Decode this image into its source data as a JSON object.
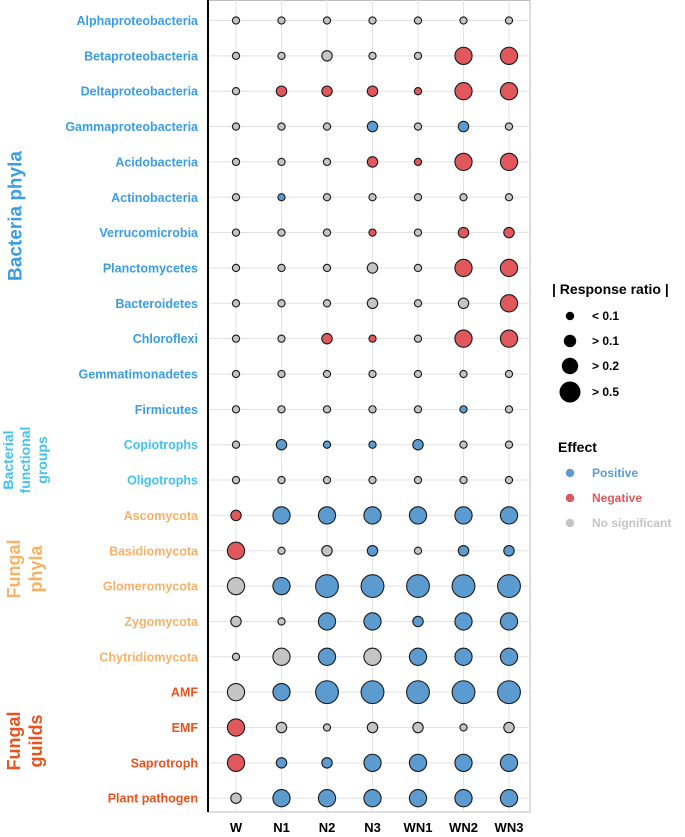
{
  "chart_data": {
    "type": "scatter",
    "title": "",
    "xlabel": "",
    "ylabel": "",
    "grid": true,
    "columns": [
      "W",
      "N1",
      "N2",
      "N3",
      "WN1",
      "WN2",
      "WN3"
    ],
    "rows": [
      {
        "label": "Alphaproteobacteria",
        "group": "bacteria"
      },
      {
        "label": "Betaproteobacteria",
        "group": "bacteria"
      },
      {
        "label": "Deltaproteobacteria",
        "group": "bacteria"
      },
      {
        "label": "Gammaproteobacteria",
        "group": "bacteria"
      },
      {
        "label": "Acidobacteria",
        "group": "bacteria"
      },
      {
        "label": "Actinobacteria",
        "group": "bacteria"
      },
      {
        "label": "Verrucomicrobia",
        "group": "bacteria"
      },
      {
        "label": "Planctomycetes",
        "group": "bacteria"
      },
      {
        "label": "Bacteroidetes",
        "group": "bacteria"
      },
      {
        "label": "Chloroflexi",
        "group": "bacteria"
      },
      {
        "label": "Gemmatimonadetes",
        "group": "bacteria"
      },
      {
        "label": "Firmicutes",
        "group": "bacteria"
      },
      {
        "label": "Copiotrophs",
        "group": "functional"
      },
      {
        "label": "Oligotrophs",
        "group": "functional"
      },
      {
        "label": "Ascomycota",
        "group": "fungal_phyla"
      },
      {
        "label": "Basidiomycota",
        "group": "fungal_phyla"
      },
      {
        "label": "Glomeromycota",
        "group": "fungal_phyla"
      },
      {
        "label": "Zygomycota",
        "group": "fungal_phyla"
      },
      {
        "label": "Chytridiomycota",
        "group": "fungal_phyla"
      },
      {
        "label": "AMF",
        "group": "fungal_guilds"
      },
      {
        "label": "EMF",
        "group": "fungal_guilds"
      },
      {
        "label": "Saprotroph",
        "group": "fungal_guilds"
      },
      {
        "label": "Plant pathogen",
        "group": "fungal_guilds"
      }
    ],
    "size_levels": [
      0.05,
      0.15,
      0.35,
      0.6
    ],
    "size_legend_labels": [
      "< 0.1",
      "> 0.1",
      "> 0.2",
      "> 0.5"
    ],
    "effect_codes": {
      "p": "Positive",
      "n": "Negative",
      "s": "No significant"
    },
    "sizes": [
      [
        0,
        0,
        0,
        0,
        0,
        0,
        0
      ],
      [
        0,
        0,
        1,
        0,
        0,
        2,
        2
      ],
      [
        0,
        1,
        1,
        1,
        0,
        2,
        2
      ],
      [
        0,
        0,
        0,
        1,
        0,
        1,
        0
      ],
      [
        0,
        0,
        0,
        1,
        0,
        2,
        2
      ],
      [
        0,
        0,
        0,
        0,
        0,
        0,
        0
      ],
      [
        0,
        0,
        0,
        0,
        0,
        1,
        1
      ],
      [
        0,
        0,
        0,
        1,
        0,
        2,
        2
      ],
      [
        0,
        0,
        0,
        1,
        0,
        1,
        2
      ],
      [
        0,
        0,
        1,
        0,
        0,
        2,
        2
      ],
      [
        0,
        0,
        0,
        0,
        0,
        0,
        0
      ],
      [
        0,
        0,
        0,
        0,
        0,
        0,
        0
      ],
      [
        0,
        1,
        0,
        0,
        1,
        0,
        0
      ],
      [
        0,
        0,
        0,
        0,
        0,
        0,
        0
      ],
      [
        1,
        2,
        2,
        2,
        2,
        2,
        2
      ],
      [
        2,
        0,
        1,
        1,
        0,
        1,
        1
      ],
      [
        2,
        2,
        3,
        3,
        3,
        3,
        3
      ],
      [
        1,
        0,
        2,
        2,
        1,
        2,
        2
      ],
      [
        0,
        2,
        2,
        2,
        2,
        2,
        2
      ],
      [
        2,
        2,
        3,
        3,
        3,
        3,
        3
      ],
      [
        2,
        1,
        0,
        1,
        1,
        0,
        1
      ],
      [
        2,
        1,
        1,
        2,
        2,
        2,
        2
      ],
      [
        1,
        2,
        2,
        2,
        2,
        2,
        2
      ]
    ],
    "effects": [
      [
        "s",
        "s",
        "s",
        "s",
        "s",
        "s",
        "s"
      ],
      [
        "s",
        "s",
        "s",
        "s",
        "s",
        "n",
        "n"
      ],
      [
        "s",
        "n",
        "n",
        "n",
        "n",
        "n",
        "n"
      ],
      [
        "s",
        "s",
        "s",
        "p",
        "s",
        "p",
        "s"
      ],
      [
        "s",
        "s",
        "s",
        "n",
        "n",
        "n",
        "n"
      ],
      [
        "s",
        "p",
        "s",
        "s",
        "s",
        "s",
        "s"
      ],
      [
        "s",
        "s",
        "s",
        "n",
        "s",
        "n",
        "n"
      ],
      [
        "s",
        "s",
        "s",
        "s",
        "s",
        "n",
        "n"
      ],
      [
        "s",
        "s",
        "s",
        "s",
        "s",
        "s",
        "n"
      ],
      [
        "s",
        "s",
        "n",
        "n",
        "s",
        "n",
        "n"
      ],
      [
        "s",
        "s",
        "s",
        "s",
        "s",
        "s",
        "s"
      ],
      [
        "s",
        "s",
        "s",
        "s",
        "s",
        "p",
        "s"
      ],
      [
        "s",
        "p",
        "p",
        "p",
        "p",
        "s",
        "s"
      ],
      [
        "s",
        "s",
        "s",
        "s",
        "s",
        "s",
        "s"
      ],
      [
        "n",
        "p",
        "p",
        "p",
        "p",
        "p",
        "p"
      ],
      [
        "n",
        "s",
        "s",
        "p",
        "s",
        "p",
        "p"
      ],
      [
        "s",
        "p",
        "p",
        "p",
        "p",
        "p",
        "p"
      ],
      [
        "s",
        "s",
        "p",
        "p",
        "p",
        "p",
        "p"
      ],
      [
        "s",
        "s",
        "p",
        "s",
        "p",
        "p",
        "p"
      ],
      [
        "s",
        "p",
        "p",
        "p",
        "p",
        "p",
        "p"
      ],
      [
        "n",
        "s",
        "s",
        "s",
        "s",
        "s",
        "s"
      ],
      [
        "n",
        "p",
        "p",
        "p",
        "p",
        "p",
        "p"
      ],
      [
        "s",
        "p",
        "p",
        "p",
        "p",
        "p",
        "p"
      ]
    ],
    "groups": [
      {
        "id": "bacteria",
        "lines": [
          "Bacteria phyla"
        ]
      },
      {
        "id": "functional",
        "lines": [
          "Bacterial",
          "functional",
          "groups"
        ]
      },
      {
        "id": "fungal_phyla",
        "lines": [
          "Fungal",
          "phyla"
        ]
      },
      {
        "id": "fungal_guilds",
        "lines": [
          "Fungal",
          "guilds"
        ]
      }
    ],
    "legend": {
      "size_title": "| Response ratio |",
      "effect_title": "Effect",
      "effect_items": [
        {
          "code": "p",
          "label": "Positive"
        },
        {
          "code": "n",
          "label": "Negative"
        },
        {
          "code": "s",
          "label": "No significant"
        }
      ]
    },
    "colors": {
      "positive": "#5b9bd0",
      "negative": "#e0585b",
      "nonsignificant": "#c4c4c4",
      "bacteria_label": "#3a9ee6",
      "functional_label": "#42c3f0",
      "fungal_phyla_label": "#f7b267",
      "fungal_guilds_label": "#e8531e",
      "grid": "#e3e3e3",
      "axis": "#000000",
      "frame": "#bdbdbd"
    }
  }
}
